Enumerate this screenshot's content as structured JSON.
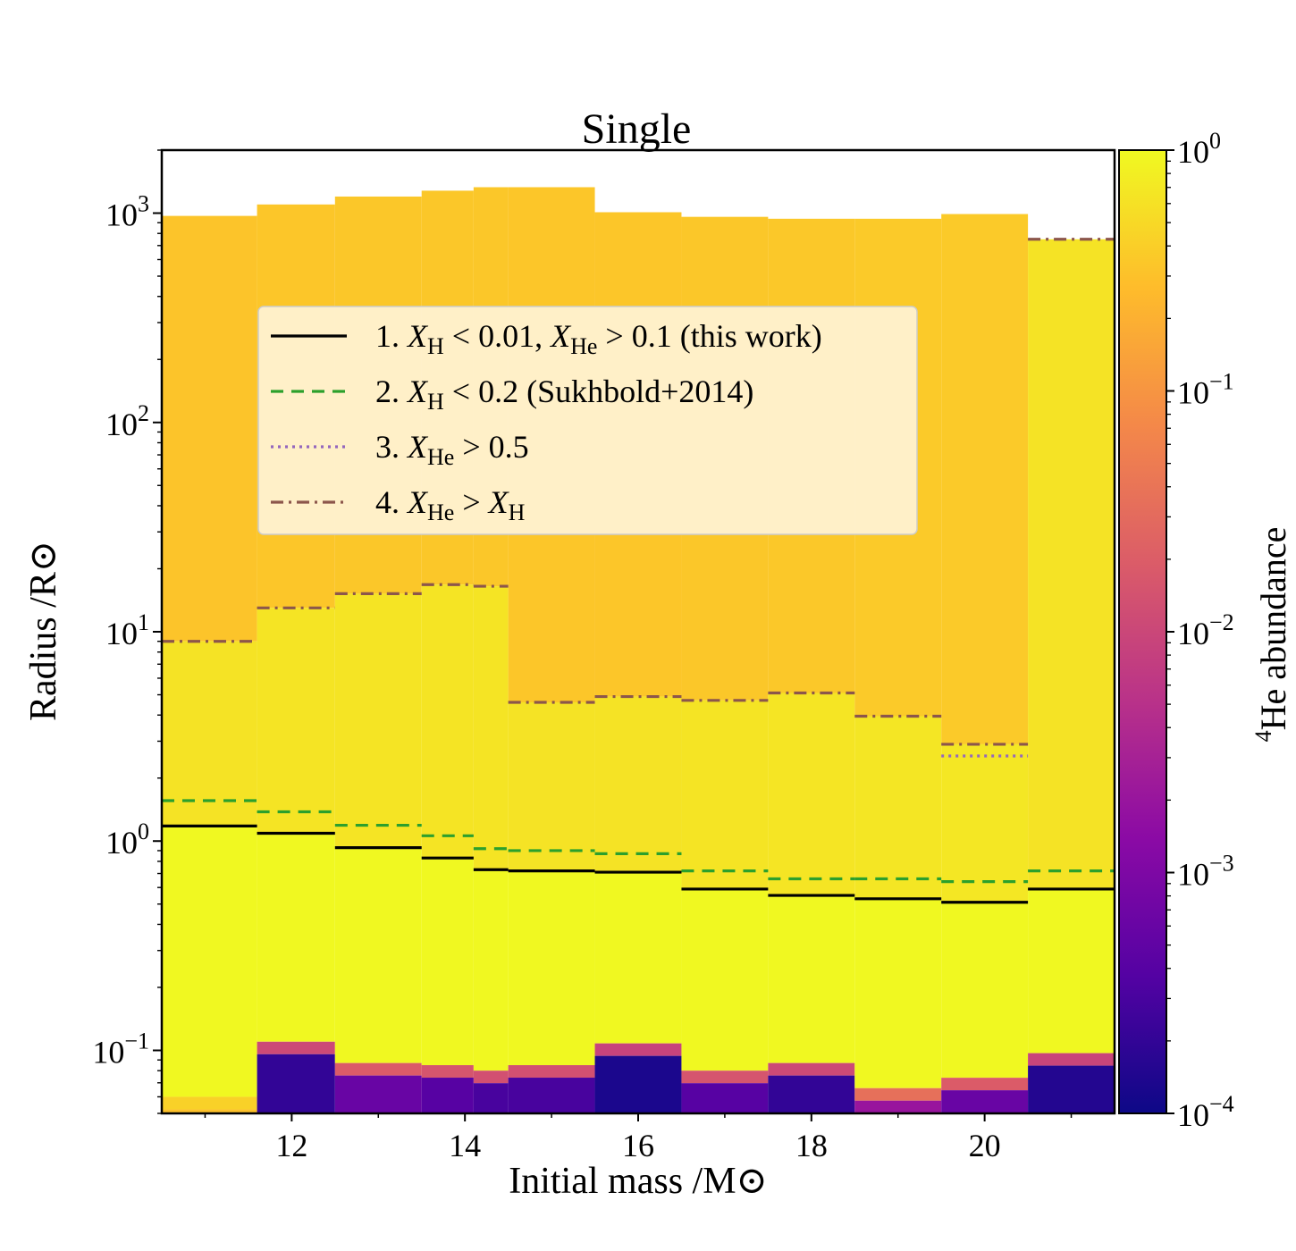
{
  "chart_data": {
    "type": "heatmap",
    "title": "Single",
    "xlabel": "Initial mass /M⊙",
    "ylabel": "Radius /R⊙",
    "xlim": [
      10.5,
      21.5
    ],
    "ylim": [
      0.05,
      2000
    ],
    "yscale": "log",
    "x_ticks": [
      12,
      14,
      16,
      18,
      20
    ],
    "y_ticks": [
      {
        "value": 0.1,
        "base": "10",
        "exp": "−1"
      },
      {
        "value": 1,
        "base": "10",
        "exp": "0"
      },
      {
        "value": 10,
        "base": "10",
        "exp": "1"
      },
      {
        "value": 100,
        "base": "10",
        "exp": "2"
      },
      {
        "value": 1000,
        "base": "10",
        "exp": "3"
      }
    ],
    "colorbar": {
      "label_sup": "4",
      "label_main": "He abundance",
      "scale": "log",
      "range": [
        0.0001,
        1
      ],
      "ticks": [
        {
          "value": 1,
          "base": "10",
          "exp": "0"
        },
        {
          "value": 0.1,
          "base": "10",
          "exp": "−1"
        },
        {
          "value": 0.01,
          "base": "10",
          "exp": "−2"
        },
        {
          "value": 0.001,
          "base": "10",
          "exp": "−3"
        },
        {
          "value": 0.0001,
          "base": "10",
          "exp": "−4"
        }
      ]
    },
    "columns": [
      {
        "x0": 10.5,
        "x1": 11.6,
        "r_top": 970,
        "he_env": 0.32,
        "he_mid": 0.62,
        "r_core": 0.06,
        "core_he": 0.3
      },
      {
        "x0": 11.6,
        "x1": 12.5,
        "r_top": 1100,
        "he_env": 0.33,
        "he_mid": 0.64,
        "r_core": 0.11,
        "core_he": 0.0002
      },
      {
        "x0": 12.5,
        "x1": 13.5,
        "r_top": 1200,
        "he_env": 0.34,
        "he_mid": 0.64,
        "r_core": 0.087,
        "core_he": 0.0006
      },
      {
        "x0": 13.5,
        "x1": 14.1,
        "r_top": 1280,
        "he_env": 0.34,
        "he_mid": 0.64,
        "r_core": 0.085,
        "core_he": 0.0004
      },
      {
        "x0": 14.1,
        "x1": 14.5,
        "r_top": 1330,
        "he_env": 0.34,
        "he_mid": 0.64,
        "r_core": 0.08,
        "core_he": 0.0003
      },
      {
        "x0": 14.5,
        "x1": 15.5,
        "r_top": 1330,
        "he_env": 0.33,
        "he_mid": 0.62,
        "r_core": 0.085,
        "core_he": 0.0003
      },
      {
        "x0": 15.5,
        "x1": 16.5,
        "r_top": 1010,
        "he_env": 0.33,
        "he_mid": 0.62,
        "r_core": 0.108,
        "core_he": 0.00013
      },
      {
        "x0": 16.5,
        "x1": 17.5,
        "r_top": 960,
        "he_env": 0.34,
        "he_mid": 0.64,
        "r_core": 0.08,
        "core_he": 0.0004
      },
      {
        "x0": 17.5,
        "x1": 18.5,
        "r_top": 940,
        "he_env": 0.35,
        "he_mid": 0.65,
        "r_core": 0.087,
        "core_he": 0.0002
      },
      {
        "x0": 18.5,
        "x1": 19.5,
        "r_top": 940,
        "he_env": 0.36,
        "he_mid": 0.66,
        "r_core": 0.066,
        "core_he": 0.002
      },
      {
        "x0": 19.5,
        "x1": 20.5,
        "r_top": 990,
        "he_env": 0.36,
        "he_mid": 0.68,
        "r_core": 0.074,
        "core_he": 0.0006
      },
      {
        "x0": 20.5,
        "x1": 21.5,
        "r_top": 740,
        "he_env": 0.5,
        "he_mid": 0.62,
        "r_core": 0.097,
        "core_he": 0.00015
      }
    ],
    "series": [
      {
        "name": "1. X_H < 0.01, X_He > 0.1 (this work)",
        "style": "solid",
        "color": "#000000",
        "values": [
          1.18,
          1.09,
          0.93,
          0.83,
          0.73,
          0.72,
          0.71,
          0.59,
          0.55,
          0.53,
          0.51,
          0.59
        ]
      },
      {
        "name": "2. X_H < 0.2 (Sukhbold+2014)",
        "style": "dashed",
        "color": "#2ca02c",
        "values": [
          1.56,
          1.38,
          1.19,
          1.06,
          0.92,
          0.9,
          0.87,
          0.72,
          0.66,
          0.66,
          0.64,
          0.72
        ]
      },
      {
        "name": "3. X_He > 0.5",
        "style": "dotted",
        "color": "#9467bd",
        "values": [
          null,
          null,
          null,
          null,
          null,
          null,
          null,
          null,
          null,
          null,
          2.55,
          null
        ]
      },
      {
        "name": "4. X_He > X_H",
        "style": "dashdot",
        "color": "#8c564b",
        "values": [
          9.0,
          13.0,
          15.2,
          16.8,
          16.5,
          4.6,
          4.9,
          4.7,
          5.1,
          3.95,
          2.9,
          750
        ]
      }
    ],
    "legend": {
      "position": "upper-left-inside",
      "entries": [
        {
          "num": "1.",
          "sym1": "X",
          "sub1": "H",
          "rel1": " < 0.01, ",
          "sym2": "X",
          "sub2": "He",
          "rel2": " > 0.1 (this work)"
        },
        {
          "num": "2.",
          "sym1": "X",
          "sub1": "H",
          "rel1": " < 0.2 (Sukhbold+2014)",
          "sym2": "",
          "sub2": "",
          "rel2": ""
        },
        {
          "num": "3.",
          "sym1": "X",
          "sub1": "He",
          "rel1": " > 0.5",
          "sym2": "",
          "sub2": "",
          "rel2": ""
        },
        {
          "num": "4.",
          "sym1": "X",
          "sub1": "He",
          "rel1": " > ",
          "sym2": "X",
          "sub2": "H",
          "rel2": ""
        }
      ]
    }
  }
}
